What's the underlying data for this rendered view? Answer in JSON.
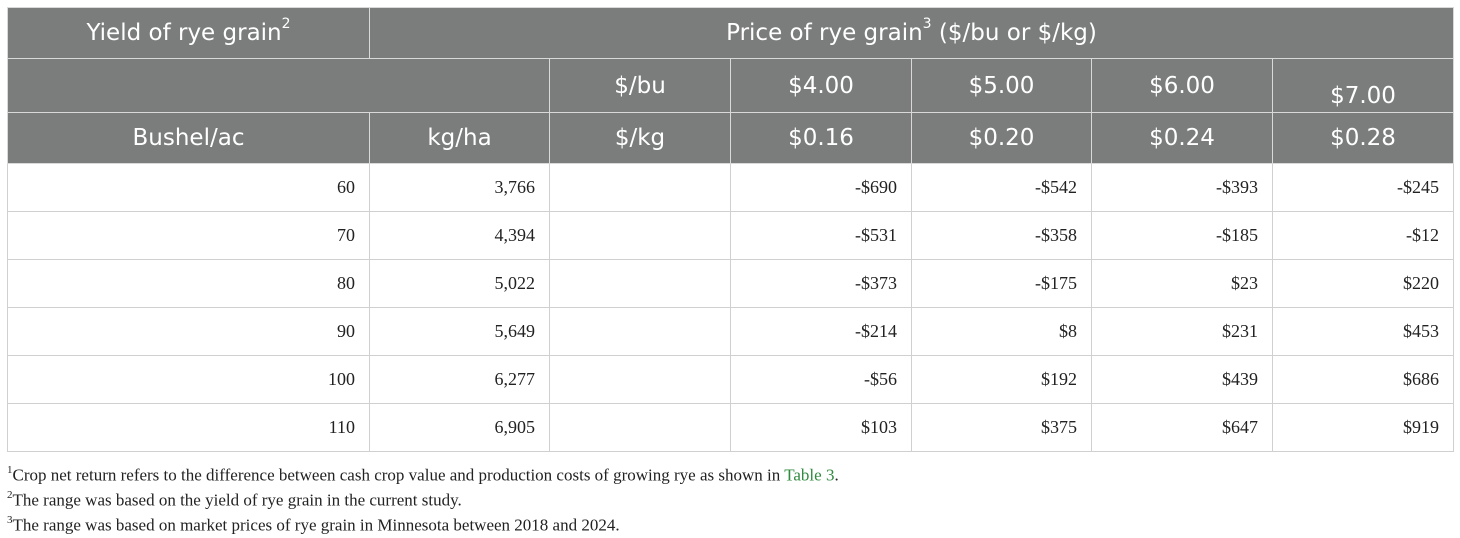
{
  "header": {
    "yield_title": "Yield of rye grain",
    "yield_title_sup": "2",
    "price_title": "Price of rye grain",
    "price_title_sup": "3",
    "price_title_suffix": " ($/bu or $/kg)",
    "row2": {
      "unit_label": "$/bu",
      "prices": [
        "$4.00",
        "$5.00",
        "$6.00",
        "$7.00"
      ]
    },
    "row3": {
      "col1": "Bushel/ac",
      "col2": "kg/ha",
      "unit_label": "$/kg",
      "prices": [
        "$0.16",
        "$0.20",
        "$0.24",
        "$0.28"
      ]
    }
  },
  "rows": [
    {
      "bushel": "60",
      "kgha": "3,766",
      "blank": "",
      "v": [
        "-$690",
        "-$542",
        "-$393",
        "-$245"
      ]
    },
    {
      "bushel": "70",
      "kgha": "4,394",
      "blank": "",
      "v": [
        "-$531",
        "-$358",
        "-$185",
        "-$12"
      ]
    },
    {
      "bushel": "80",
      "kgha": "5,022",
      "blank": "",
      "v": [
        "-$373",
        "-$175",
        "$23",
        "$220"
      ]
    },
    {
      "bushel": "90",
      "kgha": "5,649",
      "blank": "",
      "v": [
        "-$214",
        "$8",
        "$231",
        "$453"
      ]
    },
    {
      "bushel": "100",
      "kgha": "6,277",
      "blank": "",
      "v": [
        "-$56",
        "$192",
        "$439",
        "$686"
      ]
    },
    {
      "bushel": "110",
      "kgha": "6,905",
      "blank": "",
      "v": [
        "$103",
        "$375",
        "$647",
        "$919"
      ]
    }
  ],
  "footnotes": [
    {
      "sup": "1",
      "text": "Crop net return refers to the difference between cash crop value and production costs of growing rye as shown in ",
      "link": "Table 3",
      "after": "."
    },
    {
      "sup": "2",
      "text": "The range was based on the yield of rye grain in the current study."
    },
    {
      "sup": "3",
      "text": "The range was based on market prices of rye grain in Minnesota between 2018 and 2024."
    }
  ],
  "colors": {
    "header_bg": "#7b7d7c",
    "link": "#2e8b3e"
  }
}
